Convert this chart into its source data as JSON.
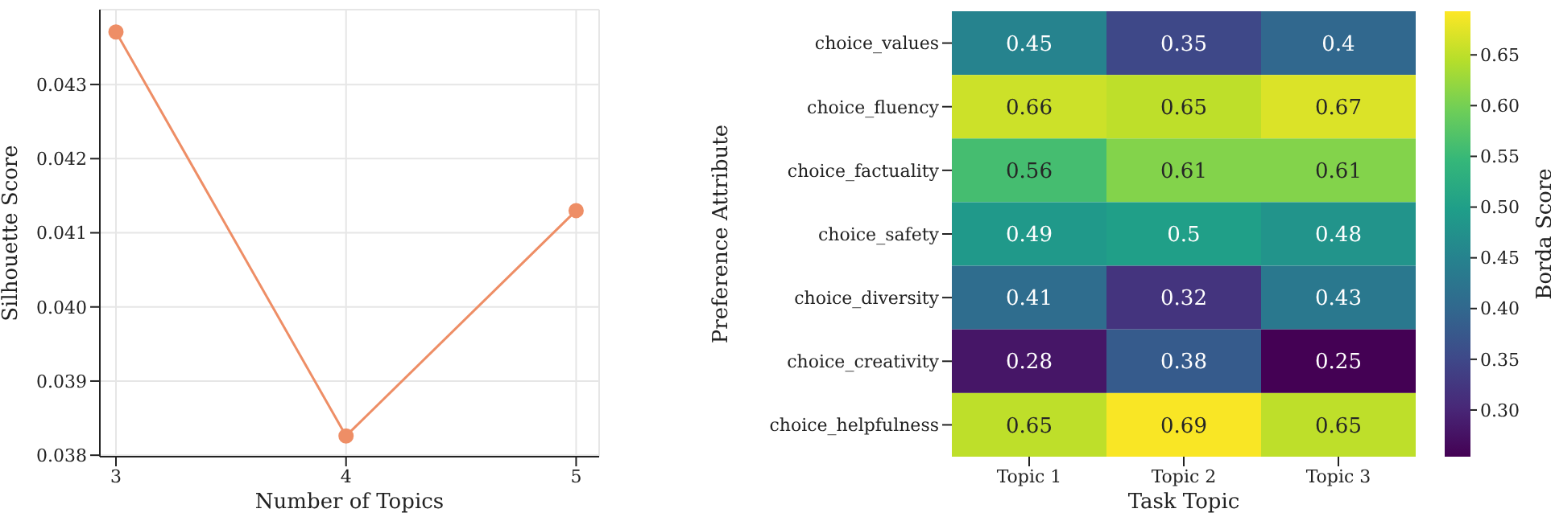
{
  "chart_data": [
    {
      "type": "line",
      "xlabel": "Number of Topics",
      "ylabel": "Silhouette Score",
      "x": [
        3,
        4,
        5
      ],
      "series": [
        {
          "color": "#ee8e66",
          "values": [
            0.04371,
            0.03826,
            0.0413
          ]
        }
      ],
      "xlim": [
        2.93,
        5.1
      ],
      "ylim": [
        0.03798,
        0.04401
      ],
      "xticks": [
        3,
        4,
        5
      ],
      "yticks": [
        {
          "value": 0.038,
          "label": "0.038"
        },
        {
          "value": 0.039,
          "label": "0.039"
        },
        {
          "value": 0.04,
          "label": "0.040"
        },
        {
          "value": 0.041,
          "label": "0.041"
        },
        {
          "value": 0.042,
          "label": "0.042"
        },
        {
          "value": 0.043,
          "label": "0.043"
        }
      ],
      "grid": true,
      "marker": "circle",
      "line_style": "solid"
    },
    {
      "type": "heatmap",
      "xlabel": "Task Topic",
      "ylabel": "Preference Attribute",
      "clabel": "Borda Score",
      "categories": [
        "Topic 1",
        "Topic 2",
        "Topic 3"
      ],
      "y_categories": [
        "choice_values",
        "choice_fluency",
        "choice_factuality",
        "choice_safety",
        "choice_diversity",
        "choice_creativity",
        "choice_helpfulness"
      ],
      "cells": [
        [
          0.45,
          0.35,
          0.4
        ],
        [
          0.66,
          0.65,
          0.67
        ],
        [
          0.56,
          0.61,
          0.61
        ],
        [
          0.49,
          0.5,
          0.48
        ],
        [
          0.41,
          0.32,
          0.43
        ],
        [
          0.28,
          0.38,
          0.25
        ],
        [
          0.65,
          0.69,
          0.65
        ]
      ],
      "clim": [
        0.254,
        0.693
      ],
      "cticks": [
        {
          "value": 0.3,
          "label": "0.30"
        },
        {
          "value": 0.35,
          "label": "0.35"
        },
        {
          "value": 0.4,
          "label": "0.40"
        },
        {
          "value": 0.45,
          "label": "0.45"
        },
        {
          "value": 0.5,
          "label": "0.50"
        },
        {
          "value": 0.55,
          "label": "0.55"
        },
        {
          "value": 0.6,
          "label": "0.60"
        },
        {
          "value": 0.65,
          "label": "0.65"
        }
      ],
      "data_labels": true
    }
  ]
}
